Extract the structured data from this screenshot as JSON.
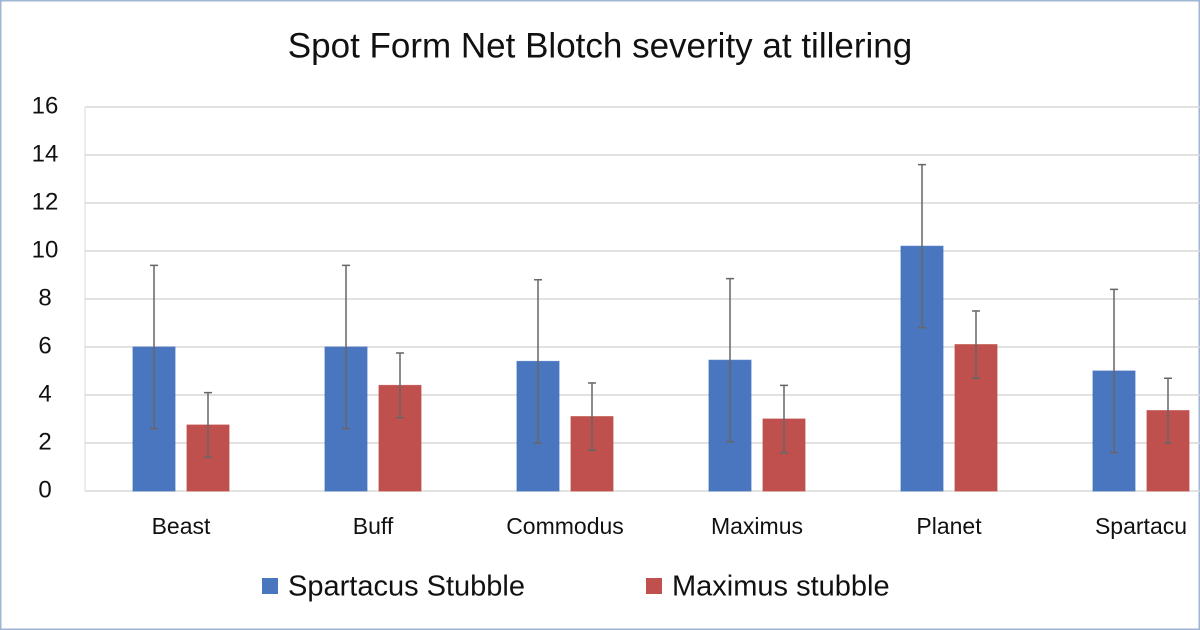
{
  "chart_data": {
    "type": "bar",
    "title": "Spot Form Net Blotch severity at tillering",
    "categories": [
      "Beast",
      "Buff",
      "Commodus",
      "Maximus",
      "Planet",
      "Spartacu"
    ],
    "series": [
      {
        "name": "Spartacus Stubble",
        "color": "#4a76c0",
        "values": [
          6.0,
          6.0,
          5.4,
          5.45,
          10.2,
          5.0
        ],
        "errors": [
          3.4,
          3.4,
          3.4,
          3.4,
          3.4,
          3.4
        ]
      },
      {
        "name": "Maximus stubble",
        "color": "#c0504d",
        "values": [
          2.75,
          4.4,
          3.1,
          3.0,
          6.1,
          3.35
        ],
        "errors": [
          1.35,
          1.35,
          1.4,
          1.4,
          1.4,
          1.35
        ]
      }
    ],
    "ylim": [
      0,
      16
    ],
    "yticks": [
      0,
      2,
      4,
      6,
      8,
      10,
      12,
      14,
      16
    ],
    "grid": true,
    "legend": "bottom"
  }
}
